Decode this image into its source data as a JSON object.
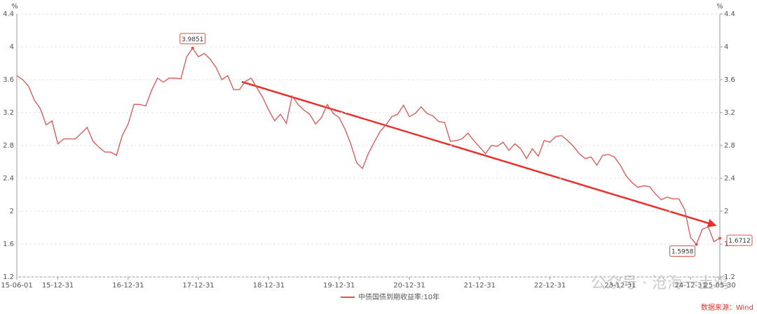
{
  "chart_data": {
    "type": "line",
    "y_unit": "%",
    "y2_unit": "%",
    "categories": [
      "15-06-01",
      null,
      null,
      null,
      null,
      null,
      null,
      "15-12-31",
      null,
      null,
      null,
      null,
      null,
      null,
      null,
      null,
      null,
      null,
      null,
      "16-12-31",
      null,
      null,
      null,
      null,
      null,
      null,
      null,
      null,
      null,
      null,
      null,
      "17-12-31",
      null,
      null,
      null,
      null,
      null,
      null,
      null,
      null,
      null,
      null,
      null,
      "18-12-31",
      null,
      null,
      null,
      null,
      null,
      null,
      null,
      null,
      null,
      null,
      null,
      "19-12-31",
      null,
      null,
      null,
      null,
      null,
      null,
      null,
      null,
      null,
      null,
      null,
      "20-12-31",
      null,
      null,
      null,
      null,
      null,
      null,
      null,
      null,
      null,
      null,
      null,
      "21-12-31",
      null,
      null,
      null,
      null,
      null,
      null,
      null,
      null,
      null,
      null,
      null,
      "22-12-31",
      null,
      null,
      null,
      null,
      null,
      null,
      null,
      null,
      null,
      null,
      null,
      "23-12-31",
      null,
      null,
      null,
      null,
      null,
      null,
      null,
      null,
      null,
      null,
      null,
      "24-12-31",
      null,
      null,
      null,
      null,
      "25-05-30"
    ],
    "series": [
      {
        "name": "中债国债到期收益率:10年",
        "color": "#d9534f",
        "values": [
          3.65,
          3.6,
          3.52,
          3.35,
          3.25,
          3.05,
          3.1,
          2.82,
          2.88,
          2.88,
          2.88,
          2.95,
          3.02,
          2.85,
          2.78,
          2.72,
          2.72,
          2.68,
          2.92,
          3.06,
          3.3,
          3.3,
          3.28,
          3.47,
          3.62,
          3.57,
          3.62,
          3.62,
          3.61,
          3.88,
          3.9851,
          3.88,
          3.92,
          3.85,
          3.75,
          3.6,
          3.65,
          3.48,
          3.48,
          3.58,
          3.62,
          3.5,
          3.38,
          3.23,
          3.1,
          3.18,
          3.07,
          3.4,
          3.3,
          3.23,
          3.18,
          3.06,
          3.14,
          3.3,
          3.19,
          3.14,
          3.0,
          2.82,
          2.59,
          2.52,
          2.7,
          2.84,
          2.97,
          3.05,
          3.15,
          3.18,
          3.29,
          3.15,
          3.19,
          3.27,
          3.19,
          3.16,
          3.09,
          3.08,
          2.85,
          2.86,
          2.88,
          2.95,
          2.86,
          2.78,
          2.7,
          2.8,
          2.79,
          2.84,
          2.74,
          2.82,
          2.76,
          2.64,
          2.76,
          2.67,
          2.86,
          2.84,
          2.91,
          2.92,
          2.86,
          2.79,
          2.7,
          2.64,
          2.66,
          2.56,
          2.68,
          2.69,
          2.66,
          2.56,
          2.43,
          2.35,
          2.29,
          2.31,
          2.3,
          2.21,
          2.14,
          2.17,
          2.15,
          2.15,
          2.02,
          1.68,
          1.5958,
          1.78,
          1.81,
          1.63,
          1.6712
        ],
        "value_labels": [
          null,
          null,
          null,
          null,
          null,
          null,
          null,
          null,
          null,
          null,
          null,
          null,
          null,
          null,
          null,
          null,
          null,
          null,
          null,
          null,
          null,
          null,
          null,
          null,
          null,
          null,
          null,
          null,
          null,
          null,
          "3.9851",
          null,
          null,
          null,
          null,
          null,
          null,
          null,
          null,
          null,
          null,
          null,
          null,
          null,
          null,
          null,
          null,
          null,
          null,
          null,
          null,
          null,
          null,
          null,
          null,
          null,
          null,
          null,
          null,
          null,
          null,
          null,
          null,
          null,
          null,
          null,
          null,
          null,
          null,
          null,
          null,
          null,
          null,
          null,
          null,
          null,
          null,
          null,
          null,
          null,
          null,
          null,
          null,
          null,
          null,
          null,
          null,
          null,
          null,
          null,
          null,
          null,
          null,
          null,
          null,
          null,
          null,
          null,
          null,
          null,
          null,
          null,
          null,
          null,
          null,
          null,
          null,
          null,
          null,
          null,
          null,
          null,
          null,
          null,
          null,
          null,
          "1.5958",
          null,
          null,
          null,
          "1.6712"
        ]
      }
    ],
    "ylim": [
      1.2,
      4.4
    ],
    "yticks": [
      1.2,
      1.6,
      2,
      2.4,
      2.8,
      3.2,
      3.6,
      4,
      4.4
    ],
    "y2lim": [
      1.2,
      4.4
    ],
    "y2ticks": [
      1.2,
      1.6,
      2,
      2.4,
      2.8,
      3.2,
      3.6,
      4,
      4.4
    ],
    "grid": true,
    "watermark": "公众号 · 沧海一土鸡",
    "source": "数据来源：Wind"
  }
}
